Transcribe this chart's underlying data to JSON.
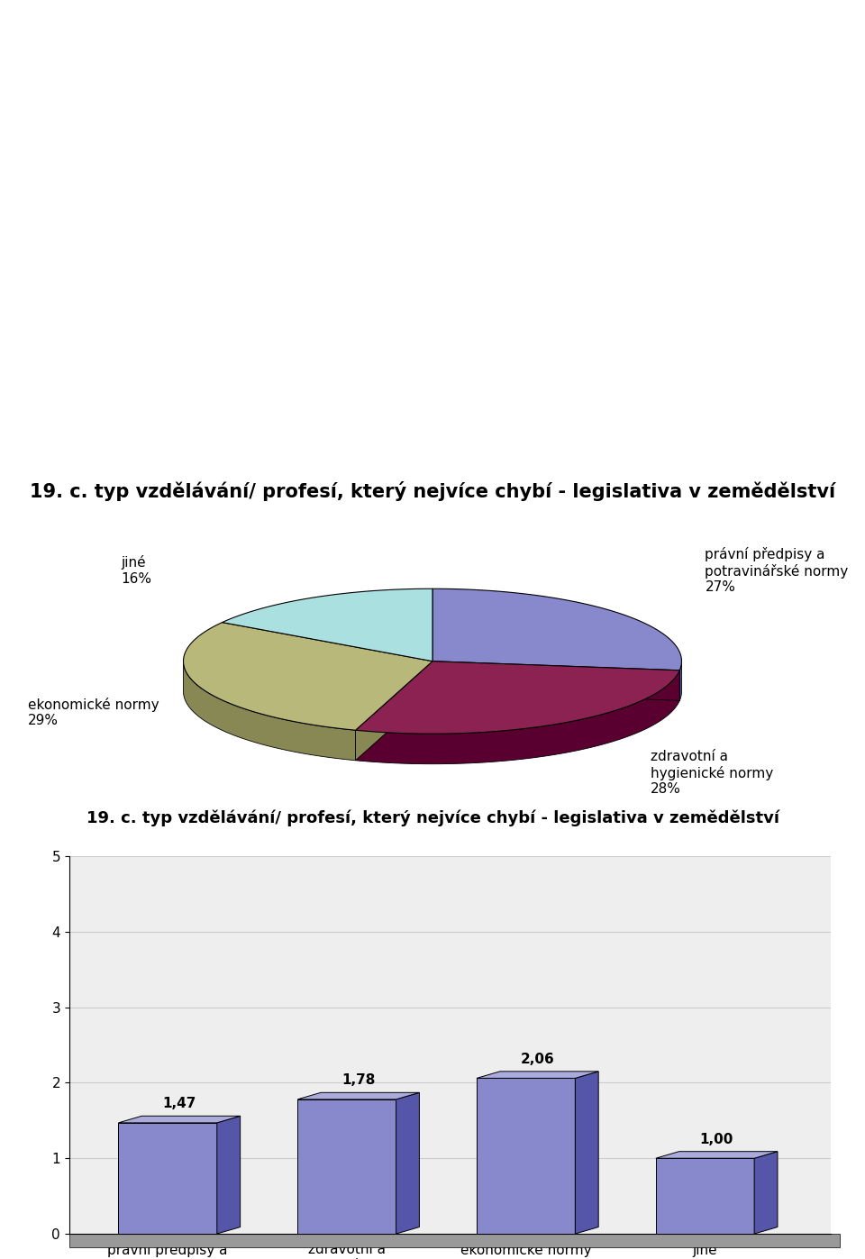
{
  "title": "19. c. typ vzdělávání/ profesí, který nejvíce chybí - legislativa v zemědělství",
  "pie_values": [
    27,
    28,
    29,
    16
  ],
  "pie_colors": [
    "#8888cc",
    "#8b2252",
    "#b8b87a",
    "#aae0e0"
  ],
  "pie_dark_colors": [
    "#5555aa",
    "#5a0030",
    "#888855",
    "#55aaaa"
  ],
  "pie_label_texts": [
    "právní předpisy a\npotravinářské normy\n27%",
    "zdravotní a\nhygienické normy\n28%",
    "ekonomické normy\n29%",
    "jiné\n16%"
  ],
  "bar_title": "19. c. typ vzdělávání/ profesí, který nejvíce chybí - legislativa v zemědělství",
  "bar_categories": [
    "právní předpisy a\npotravinářské\nnormy",
    "zdravotní a\nhygienické normy",
    "ekonomické normy",
    "jiné"
  ],
  "bar_values": [
    1.47,
    1.78,
    2.06,
    1.0
  ],
  "bar_value_labels": [
    "1,47",
    "1,78",
    "2,06",
    "1,00"
  ],
  "bar_color_face": "#8888cc",
  "bar_color_side": "#5555aa",
  "bar_color_top": "#aaaadd",
  "bar_ylim": [
    0,
    5
  ],
  "bar_yticks": [
    0,
    1,
    2,
    3,
    4,
    5
  ],
  "background_color": "#ffffff",
  "text_color": "#000000",
  "font_size_title": 15,
  "font_size_bar_title": 13,
  "font_size_pie_labels": 11,
  "font_size_bar_labels": 11,
  "font_size_values": 11
}
